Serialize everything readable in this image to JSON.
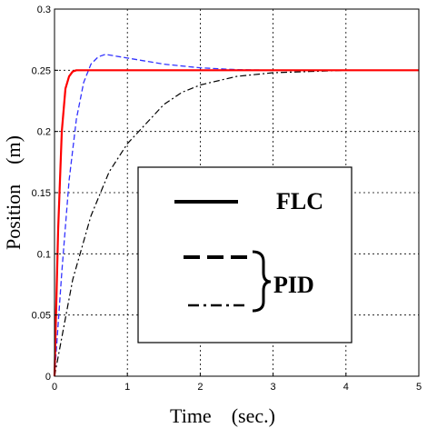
{
  "chart_data": {
    "type": "line",
    "xlabel": "Time    (sec.)",
    "ylabel": "Position    (m)",
    "xlim": [
      0,
      5
    ],
    "ylim": [
      0,
      0.3
    ],
    "xticks": [
      "0",
      "1",
      "2",
      "3",
      "4",
      "5"
    ],
    "yticks": [
      "0",
      "0.05",
      "0.1",
      "0.15",
      "0.2",
      "0.25",
      "0.3"
    ],
    "grid": true,
    "legend": {
      "placement": "lower-center",
      "entries": [
        {
          "label": "FLC",
          "style": "solid"
        },
        {
          "label": "PID",
          "style": "dashed"
        },
        {
          "label": "",
          "style": "dashdot"
        }
      ],
      "group_label": "PID"
    },
    "series": [
      {
        "name": "FLC",
        "color": "#ff0000",
        "style": "solid",
        "x": [
          0,
          0.05,
          0.1,
          0.15,
          0.2,
          0.25,
          0.3,
          0.4,
          0.5,
          1,
          2,
          3,
          4,
          5
        ],
        "y": [
          0,
          0.12,
          0.2,
          0.235,
          0.245,
          0.249,
          0.25,
          0.25,
          0.25,
          0.25,
          0.25,
          0.25,
          0.25,
          0.25
        ]
      },
      {
        "name": "PID",
        "color": "#3333ff",
        "style": "dashed",
        "x": [
          0,
          0.1,
          0.2,
          0.3,
          0.4,
          0.5,
          0.6,
          0.7,
          0.8,
          1,
          1.5,
          2,
          2.5,
          3,
          4,
          5
        ],
        "y": [
          0,
          0.085,
          0.16,
          0.21,
          0.24,
          0.255,
          0.261,
          0.263,
          0.262,
          0.26,
          0.255,
          0.252,
          0.2505,
          0.25,
          0.25,
          0.25
        ]
      },
      {
        "name": "",
        "color": "#000000",
        "style": "dashdot",
        "x": [
          0,
          0.25,
          0.5,
          0.75,
          1,
          1.25,
          1.5,
          1.75,
          2,
          2.5,
          3,
          3.5,
          4,
          5
        ],
        "y": [
          0,
          0.079,
          0.131,
          0.167,
          0.19,
          0.206,
          0.222,
          0.232,
          0.238,
          0.245,
          0.248,
          0.249,
          0.25,
          0.25
        ]
      }
    ]
  }
}
